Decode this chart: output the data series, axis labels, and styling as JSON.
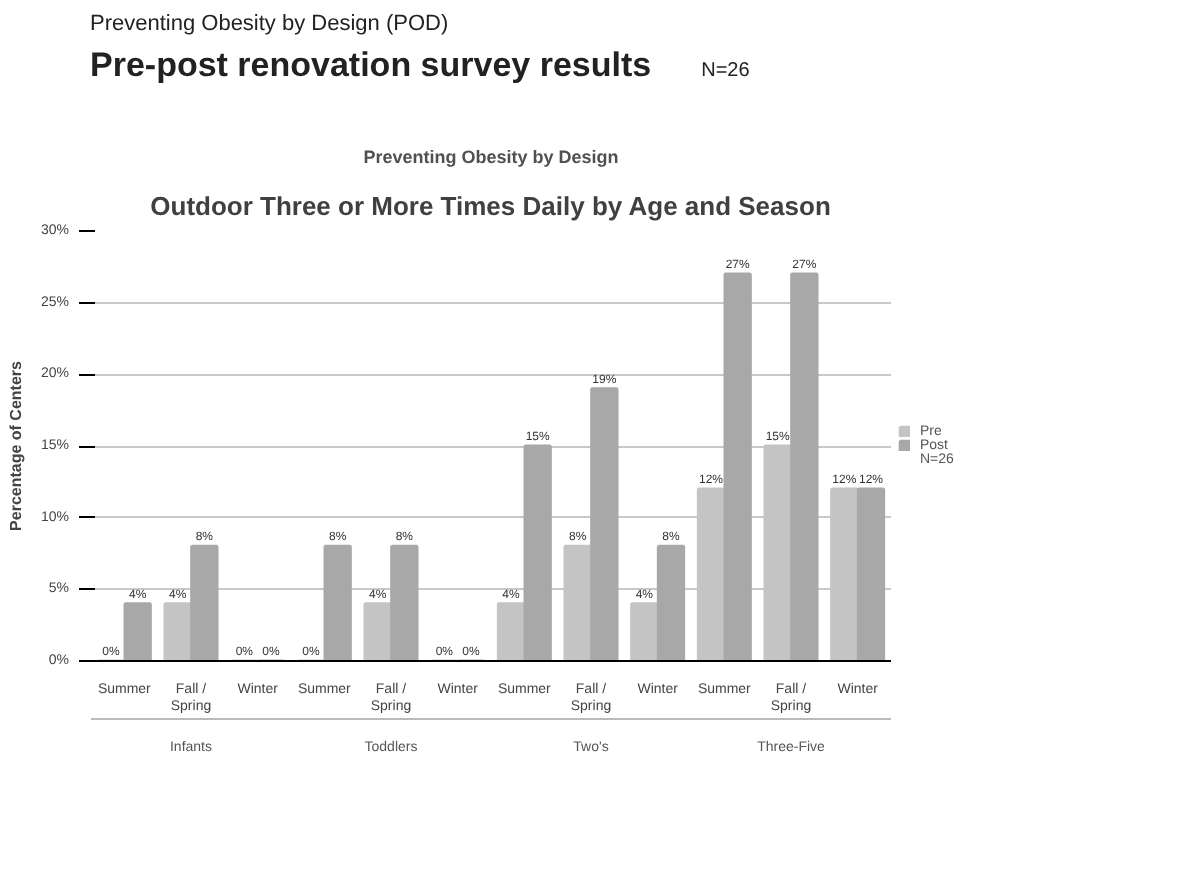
{
  "chart_data": {
    "type": "bar",
    "title": "Outdoor Three or More Times Daily by Age and Season",
    "subtitle": "Preventing Obesity by Design",
    "ylabel": "Percentage of Centers",
    "categories": [
      "Summer",
      "Fall / Spring",
      "Winter",
      "Summer",
      "Fall / Spring",
      "Winter",
      "Summer",
      "Fall / Spring",
      "Winter",
      "Summer",
      "Fall / Spring",
      "Winter"
    ],
    "series": [
      {
        "name": "Pre",
        "color": "#c4c4c4",
        "values": [
          0,
          4,
          0,
          0,
          4,
          0,
          4,
          8,
          4,
          12,
          15,
          12
        ],
        "value_labels": [
          "0%",
          "4%",
          "0%",
          "0%",
          "4%",
          "0%",
          "4%",
          "8%",
          "4%",
          "12%",
          "15%",
          "12%"
        ]
      },
      {
        "name": "Post",
        "color": "#a8a8a8",
        "values": [
          4,
          8,
          0,
          8,
          8,
          0,
          15,
          19,
          8,
          27,
          27,
          12
        ],
        "value_labels": [
          "4%",
          "8%",
          "0%",
          "8%",
          "8%",
          "0%",
          "15%",
          "19%",
          "8%",
          "27%",
          "27%",
          "12%"
        ]
      }
    ],
    "ylim": [
      0,
      30
    ],
    "yticks": [
      {
        "value": 0,
        "label": "0%"
      },
      {
        "value": 5,
        "label": "5%"
      },
      {
        "value": 10,
        "label": "10%"
      },
      {
        "value": 15,
        "label": "15%"
      },
      {
        "value": 20,
        "label": "20%"
      },
      {
        "value": 25,
        "label": "25%"
      },
      {
        "value": 30,
        "label": "30%"
      }
    ],
    "grid": "y",
    "legend": "right",
    "annotations": [
      "Infants",
      "Toddlers",
      "Two's",
      "Three-Five",
      "Preventing Obesity by Design (POD)",
      "Pre-post renovation survey results",
      "N=26",
      "N=26"
    ]
  }
}
